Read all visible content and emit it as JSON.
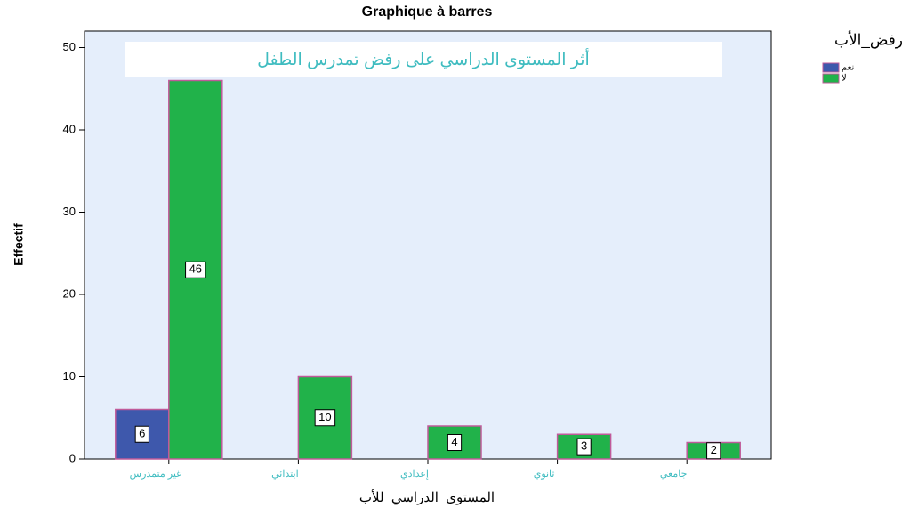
{
  "chart_data": {
    "type": "bar",
    "title": "Graphique à barres",
    "annotation": "أثر المستوى الدراسي على رفض تمدرس الطفل",
    "y_label": "Effectif",
    "x_label": "المستوى_الدراسي_للأب",
    "legend_title": "رفض_الأب",
    "categories": [
      "غير متمدرس",
      "ابتدائي",
      "إعدادي",
      "ثانوي",
      "جامعي"
    ],
    "series": [
      {
        "name": "نعم",
        "color": "#3e58ac",
        "values": [
          6,
          null,
          null,
          null,
          null
        ]
      },
      {
        "name": "لا",
        "color": "#21b24a",
        "values": [
          46,
          10,
          4,
          3,
          2
        ]
      }
    ],
    "ylim": [
      0,
      52
    ],
    "yticks": [
      0,
      10,
      20,
      30,
      40,
      50
    ],
    "legend": "right"
  }
}
